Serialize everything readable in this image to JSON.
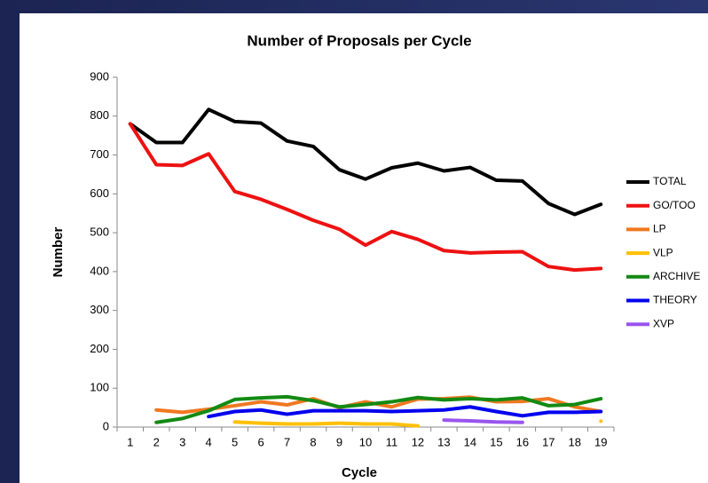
{
  "chart_data": {
    "type": "line",
    "title": "Number of Proposals per Cycle",
    "x_label": "Cycle",
    "y_label": "Number",
    "categories": [
      "1",
      "2",
      "3",
      "4",
      "5",
      "6",
      "7",
      "8",
      "9",
      "10",
      "11",
      "12",
      "13",
      "14",
      "15",
      "16",
      "17",
      "18",
      "19"
    ],
    "ylim": [
      0,
      900
    ],
    "yticks": [
      0,
      100,
      200,
      300,
      400,
      500,
      600,
      700,
      800,
      900
    ],
    "grid": false,
    "legend": "right",
    "series": [
      {
        "name": "TOTAL",
        "color": "#000000",
        "values": [
          780,
          732,
          732,
          817,
          786,
          782,
          736,
          722,
          662,
          638,
          667,
          679,
          659,
          668,
          635,
          633,
          575,
          547,
          573
        ]
      },
      {
        "name": "GO/TOO",
        "color": "#ee1111",
        "values": [
          780,
          675,
          673,
          703,
          606,
          586,
          560,
          532,
          509,
          468,
          503,
          483,
          454,
          448,
          450,
          451,
          413,
          404,
          408
        ]
      },
      {
        "name": "LP",
        "color": "#f07820",
        "values": [
          null,
          44,
          38,
          46,
          55,
          65,
          57,
          73,
          50,
          65,
          52,
          72,
          73,
          77,
          65,
          66,
          73,
          52,
          40
        ]
      },
      {
        "name": "VLP",
        "color": "#ffc000",
        "values": [
          null,
          null,
          null,
          null,
          13,
          10,
          8,
          8,
          10,
          8,
          8,
          3,
          null,
          null,
          null,
          null,
          null,
          null,
          15
        ]
      },
      {
        "name": "ARCHIVE",
        "color": "#138a13",
        "values": [
          null,
          12,
          22,
          42,
          71,
          75,
          78,
          68,
          52,
          58,
          65,
          76,
          70,
          73,
          70,
          75,
          55,
          58,
          73
        ]
      },
      {
        "name": "THEORY",
        "color": "#0000ee",
        "values": [
          null,
          null,
          null,
          27,
          40,
          44,
          33,
          42,
          42,
          42,
          40,
          42,
          44,
          52,
          40,
          29,
          38,
          38,
          40
        ]
      },
      {
        "name": "XVP",
        "color": "#9955ee",
        "values": [
          null,
          null,
          null,
          null,
          null,
          null,
          null,
          null,
          null,
          null,
          null,
          null,
          18,
          16,
          13,
          12,
          null,
          null,
          null
        ]
      }
    ]
  }
}
